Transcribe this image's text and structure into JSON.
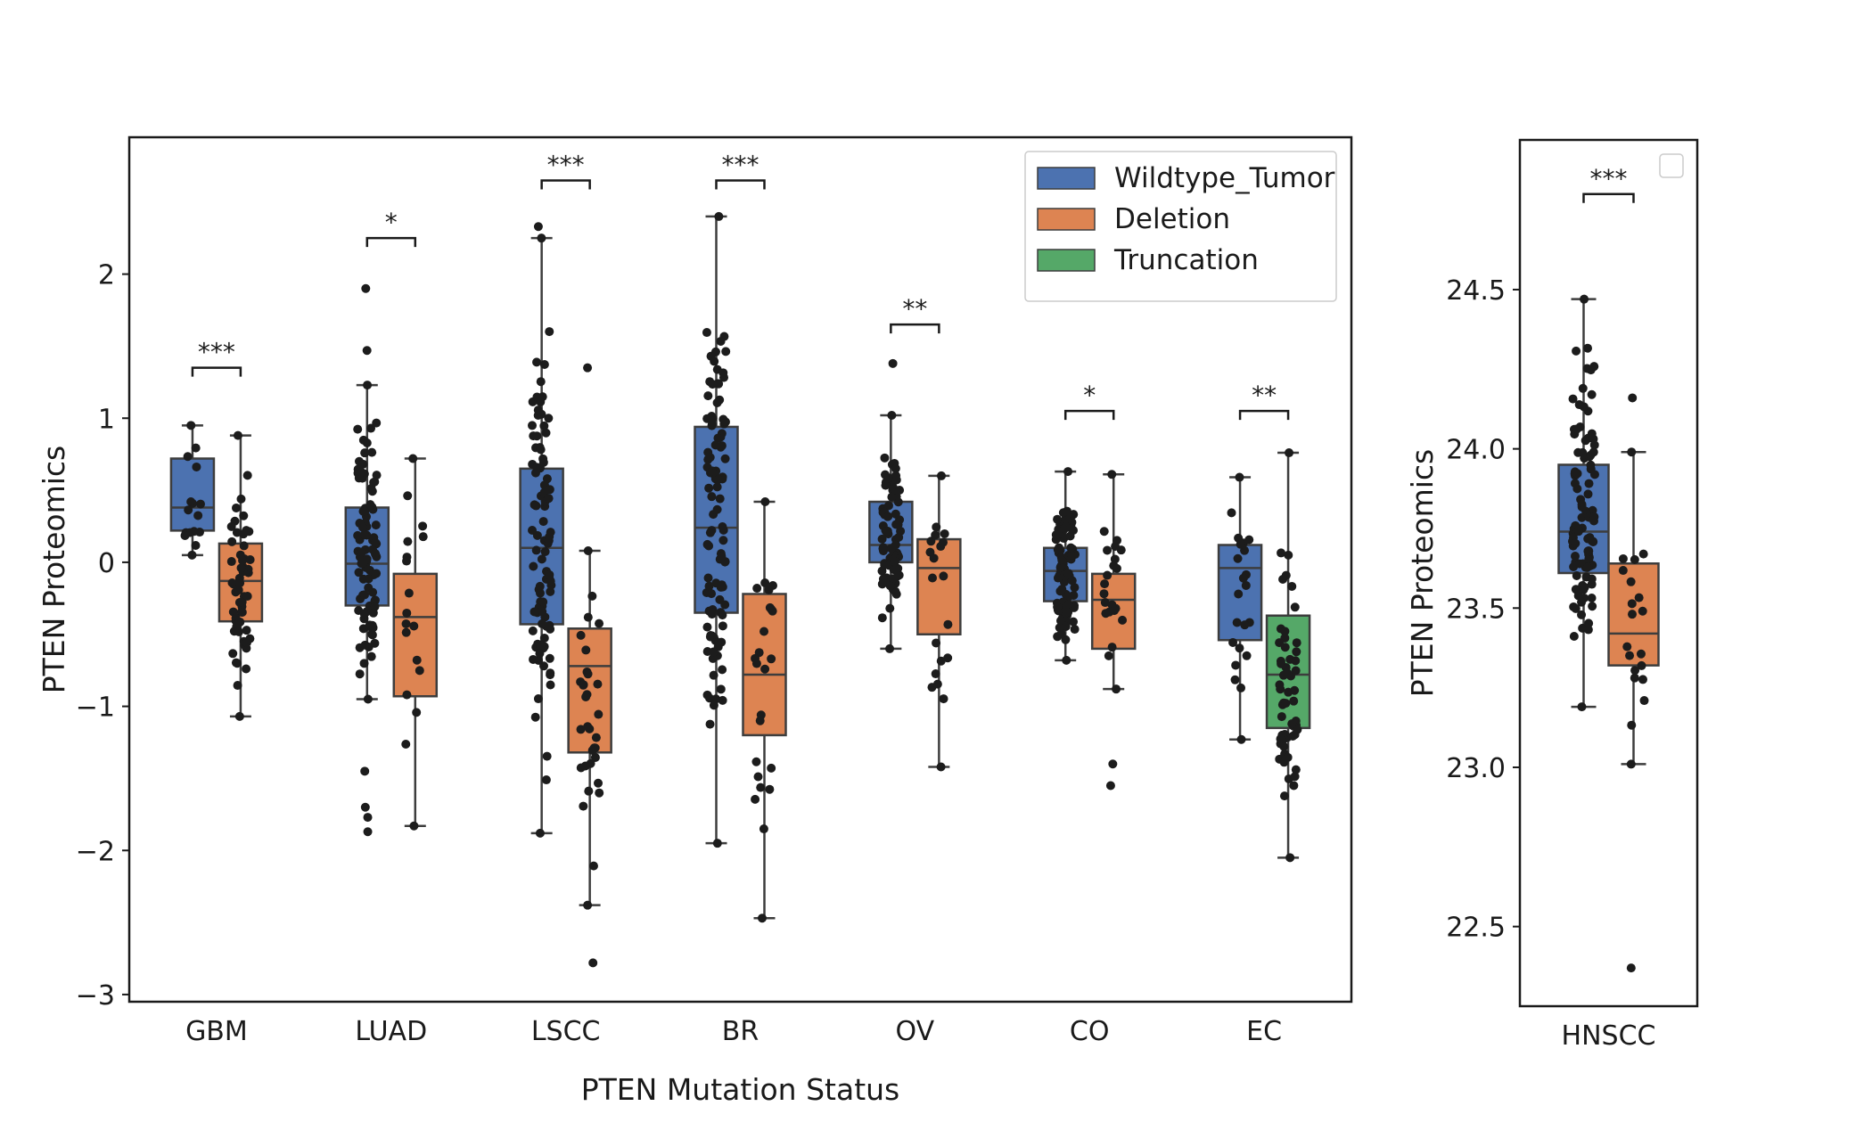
{
  "chart_data": [
    {
      "type": "box",
      "xlabel": "PTEN Mutation Status",
      "ylabel": "PTEN Proteomics",
      "ylim": [
        -3.05,
        2.95
      ],
      "yticks": [
        {
          "v": 2,
          "label": "2"
        },
        {
          "v": 1,
          "label": "1"
        },
        {
          "v": 0,
          "label": "0"
        },
        {
          "v": -1,
          "label": "−1"
        },
        {
          "v": -2,
          "label": "−2"
        },
        {
          "v": -3,
          "label": "−3"
        }
      ],
      "grid": false,
      "legend_position": "top-right",
      "legend": [
        {
          "name": "Wildtype_Tumor",
          "color": "#4c72b0"
        },
        {
          "name": "Deletion",
          "color": "#dd8452"
        },
        {
          "name": "Truncation",
          "color": "#55a868"
        }
      ],
      "categories": [
        "GBM",
        "LUAD",
        "LSCC",
        "BR",
        "OV",
        "CO",
        "EC"
      ],
      "groups": [
        {
          "category": "GBM",
          "significance": "***",
          "bracket_y": 1.35,
          "boxes": [
            {
              "series": "Wildtype_Tumor",
              "whisker_low": 0.05,
              "q1": 0.22,
              "median": 0.38,
              "q3": 0.72,
              "whisker_high": 0.95,
              "outliers": [],
              "n": 14
            },
            {
              "series": "Deletion",
              "whisker_low": -1.07,
              "q1": -0.41,
              "median": -0.13,
              "q3": 0.13,
              "whisker_high": 0.88,
              "outliers": [],
              "n": 55
            }
          ]
        },
        {
          "category": "LUAD",
          "significance": "*",
          "bracket_y": 2.25,
          "boxes": [
            {
              "series": "Wildtype_Tumor",
              "whisker_low": -0.95,
              "q1": -0.3,
              "median": -0.01,
              "q3": 0.38,
              "whisker_high": 1.23,
              "outliers": [
                -1.45,
                -1.7,
                -1.77,
                -1.87,
                1.47,
                1.9
              ],
              "n": 90
            },
            {
              "series": "Deletion",
              "whisker_low": -1.83,
              "q1": -0.93,
              "median": -0.38,
              "q3": -0.08,
              "whisker_high": 0.72,
              "outliers": [],
              "n": 16
            }
          ]
        },
        {
          "category": "LSCC",
          "significance": "***",
          "bracket_y": 2.65,
          "boxes": [
            {
              "series": "Wildtype_Tumor",
              "whisker_low": -1.88,
              "q1": -0.43,
              "median": 0.1,
              "q3": 0.65,
              "whisker_high": 2.25,
              "outliers": [
                2.33
              ],
              "n": 90
            },
            {
              "series": "Deletion",
              "whisker_low": -2.38,
              "q1": -1.32,
              "median": -0.72,
              "q3": -0.46,
              "whisker_high": 0.08,
              "outliers": [
                -2.78,
                1.35
              ],
              "n": 30
            }
          ]
        },
        {
          "category": "BR",
          "significance": "***",
          "bracket_y": 2.65,
          "boxes": [
            {
              "series": "Wildtype_Tumor",
              "whisker_low": -1.95,
              "q1": -0.35,
              "median": 0.24,
              "q3": 0.94,
              "whisker_high": 2.4,
              "outliers": [],
              "n": 100
            },
            {
              "series": "Deletion",
              "whisker_low": -2.47,
              "q1": -1.2,
              "median": -0.78,
              "q3": -0.22,
              "whisker_high": 0.42,
              "outliers": [],
              "n": 22
            }
          ]
        },
        {
          "category": "OV",
          "significance": "**",
          "bracket_y": 1.65,
          "boxes": [
            {
              "series": "Wildtype_Tumor",
              "whisker_low": -0.6,
              "q1": 0.0,
              "median": 0.12,
              "q3": 0.42,
              "whisker_high": 1.02,
              "outliers": [
                1.38
              ],
              "n": 80
            },
            {
              "series": "Deletion",
              "whisker_low": -1.42,
              "q1": -0.5,
              "median": -0.04,
              "q3": 0.16,
              "whisker_high": 0.6,
              "outliers": [],
              "n": 18
            }
          ]
        },
        {
          "category": "CO",
          "significance": "*",
          "bracket_y": 1.05,
          "boxes": [
            {
              "series": "Wildtype_Tumor",
              "whisker_low": -0.68,
              "q1": -0.27,
              "median": -0.06,
              "q3": 0.1,
              "whisker_high": 0.63,
              "outliers": [],
              "n": 90
            },
            {
              "series": "Deletion",
              "whisker_low": -0.88,
              "q1": -0.6,
              "median": -0.26,
              "q3": -0.08,
              "whisker_high": 0.61,
              "outliers": [
                -1.4,
                -1.55
              ],
              "n": 20
            }
          ]
        },
        {
          "category": "EC",
          "significance": "**",
          "bracket_y": 1.05,
          "boxes": [
            {
              "series": "Wildtype_Tumor",
              "whisker_low": -1.23,
              "q1": -0.54,
              "median": -0.04,
              "q3": 0.12,
              "whisker_high": 0.59,
              "outliers": [],
              "n": 20
            },
            {
              "series": "Truncation",
              "whisker_low": -2.05,
              "q1": -1.15,
              "median": -0.78,
              "q3": -0.37,
              "whisker_high": 0.76,
              "outliers": [],
              "n": 55
            }
          ]
        }
      ]
    },
    {
      "type": "box",
      "xlabel": "",
      "ylabel": "PTEN Proteomics",
      "ylim": [
        22.25,
        24.97
      ],
      "yticks": [
        {
          "v": 24.5,
          "label": "24.5"
        },
        {
          "v": 24.0,
          "label": "24.0"
        },
        {
          "v": 23.5,
          "label": "23.5"
        },
        {
          "v": 23.0,
          "label": "23.0"
        },
        {
          "v": 22.5,
          "label": "22.5"
        }
      ],
      "grid": false,
      "legend_position": "top-right",
      "legend": [],
      "categories": [
        "HNSCC"
      ],
      "groups": [
        {
          "category": "HNSCC",
          "significance": "***",
          "bracket_y": 24.8,
          "boxes": [
            {
              "series": "Wildtype_Tumor",
              "whisker_low": 23.19,
              "q1": 23.61,
              "median": 23.74,
              "q3": 23.95,
              "whisker_high": 24.47,
              "outliers": [],
              "n": 100
            },
            {
              "series": "Deletion",
              "whisker_low": 23.01,
              "q1": 23.32,
              "median": 23.42,
              "q3": 23.64,
              "whisker_high": 23.99,
              "outliers": [
                22.37,
                24.16
              ],
              "n": 18
            }
          ]
        }
      ]
    }
  ]
}
